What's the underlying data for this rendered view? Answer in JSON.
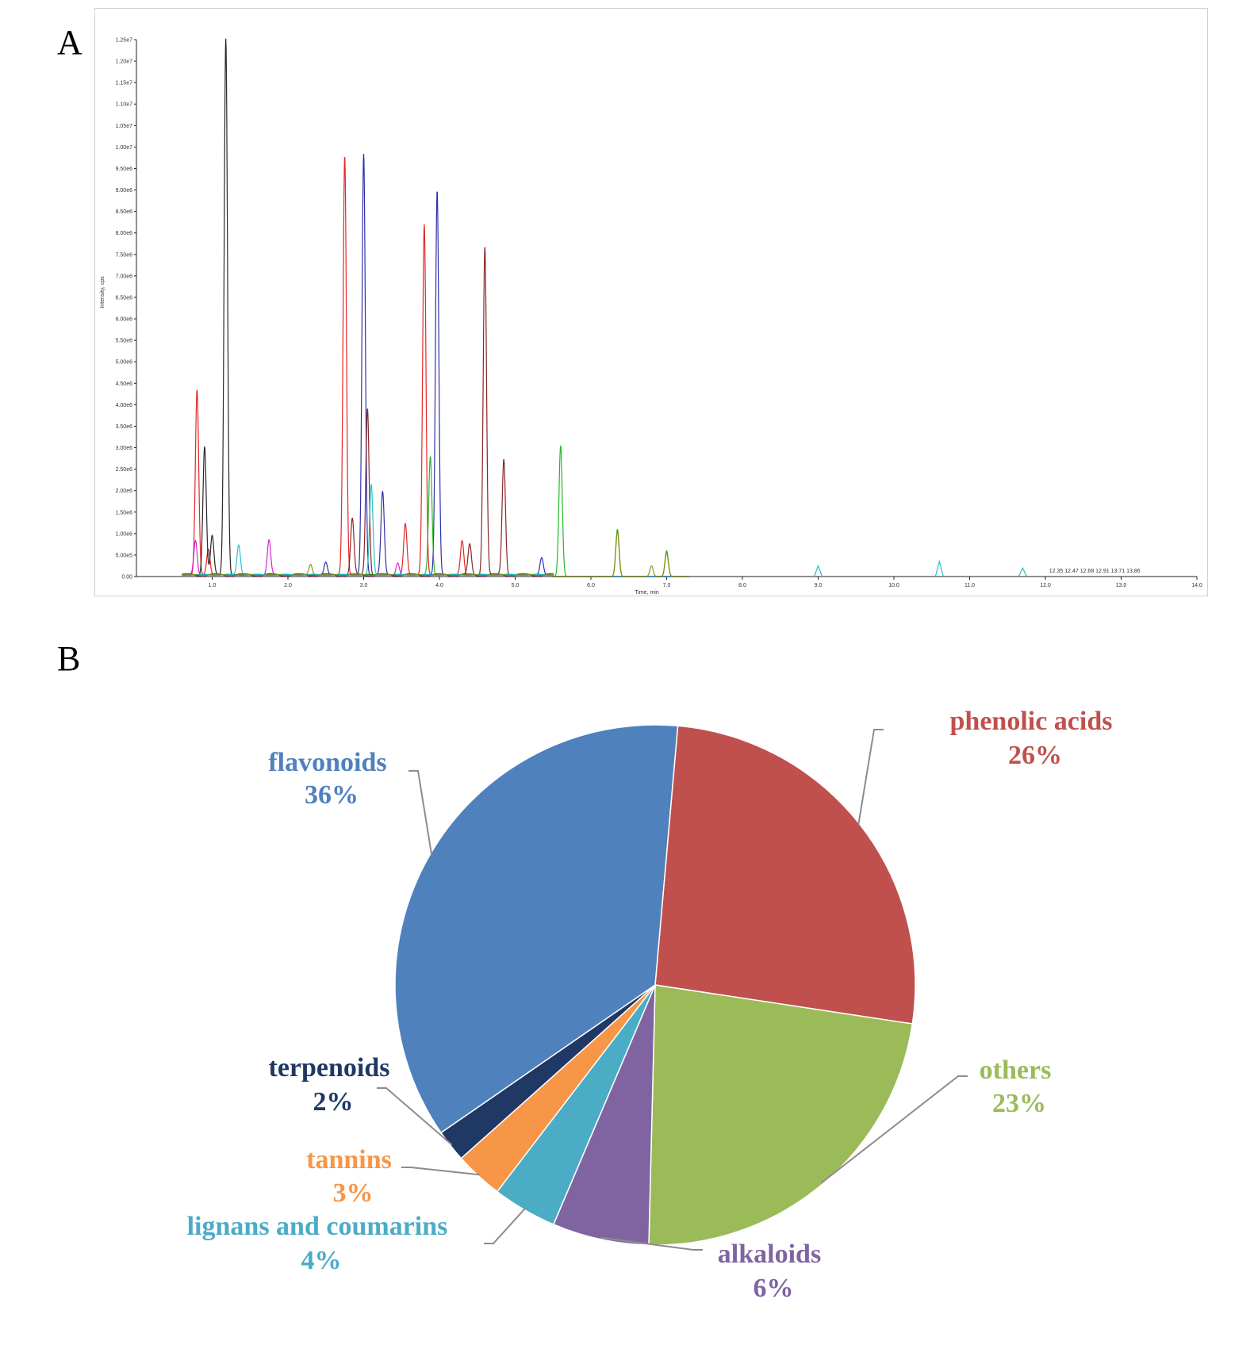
{
  "panels": {
    "a": "A",
    "b": "B"
  },
  "chromatogram": {
    "title": "",
    "ylabel": "Intensity, cps",
    "xlabel": "Time, min",
    "y_tick_labels": [
      "0.00",
      "5.00e5",
      "1.00e6",
      "1.50e6",
      "2.00e6",
      "2.50e6",
      "3.00e6",
      "3.50e6",
      "4.00e6",
      "4.50e6",
      "5.00e6",
      "5.50e6",
      "6.00e6",
      "6.50e6",
      "7.00e6",
      "7.50e6",
      "8.00e6",
      "8.50e6",
      "9.00e6",
      "9.50e6",
      "1.00e7",
      "1.05e7",
      "1.10e7",
      "1.15e7",
      "1.20e7",
      "1.25e7"
    ],
    "x_tick_labels": [
      "1.0",
      "2.0",
      "3.0",
      "4.0",
      "5.0",
      "6.0",
      "7.0",
      "8.0",
      "9.0",
      "10.0",
      "11.0",
      "12.0",
      "13.0",
      "14.0"
    ],
    "annotations": [
      "12.35",
      "12.47",
      "12.68",
      "12.91",
      "13.71",
      "13.86"
    ]
  },
  "chart_data": [
    {
      "type": "line",
      "title": "",
      "xlabel": "Time, min",
      "ylabel": "Intensity, cps",
      "xlim": [
        0,
        14
      ],
      "ylim": [
        0,
        12500000
      ],
      "series": [
        {
          "name": "red",
          "color": "#e01010",
          "peaks": [
            [
              0.8,
              4300000
            ],
            [
              2.75,
              9750000
            ],
            [
              3.55,
              1200000
            ],
            [
              3.8,
              8150000
            ],
            [
              0.95,
              600000
            ],
            [
              4.3,
              800000
            ]
          ]
        },
        {
          "name": "black",
          "color": "#111111",
          "peaks": [
            [
              1.18,
              12500000
            ],
            [
              0.9,
              3000000
            ],
            [
              1.0,
              900000
            ]
          ]
        },
        {
          "name": "navy",
          "color": "#1a1aa0",
          "peaks": [
            [
              3.0,
              9800000
            ],
            [
              3.97,
              8950000
            ],
            [
              3.25,
              1950000
            ],
            [
              2.5,
              300000
            ],
            [
              5.35,
              400000
            ]
          ]
        },
        {
          "name": "darkred",
          "color": "#7a1010",
          "peaks": [
            [
              4.6,
              7650000
            ],
            [
              3.05,
              3900000
            ],
            [
              4.85,
              2700000
            ],
            [
              2.85,
              1300000
            ],
            [
              4.4,
              700000
            ]
          ]
        },
        {
          "name": "green",
          "color": "#10b010",
          "peaks": [
            [
              5.6,
              3050000
            ],
            [
              3.88,
              2750000
            ],
            [
              6.35,
              1100000
            ],
            [
              7.0,
              600000
            ]
          ]
        },
        {
          "name": "magenta",
          "color": "#d010d0",
          "peaks": [
            [
              1.75,
              800000
            ],
            [
              0.78,
              800000
            ],
            [
              3.45,
              300000
            ]
          ]
        },
        {
          "name": "cyan",
          "color": "#18b8c8",
          "peaks": [
            [
              1.35,
              700000
            ],
            [
              3.1,
              2100000
            ],
            [
              9.0,
              250000
            ],
            [
              10.6,
              350000
            ],
            [
              11.7,
              200000
            ]
          ]
        },
        {
          "name": "olive",
          "color": "#8a8a10",
          "peaks": [
            [
              6.35,
              1050000
            ],
            [
              7.0,
              550000
            ],
            [
              6.8,
              250000
            ],
            [
              2.3,
              250000
            ]
          ]
        }
      ]
    },
    {
      "type": "pie",
      "title": "",
      "start_angle_deg": 5,
      "categories": [
        "phenolic acids",
        "others",
        "alkaloids",
        "lignans and coumarins",
        "tannins",
        "terpenoids",
        "flavonoids"
      ],
      "values": [
        26,
        23,
        6,
        4,
        3,
        2,
        36
      ],
      "colors": [
        "#c0504d",
        "#9bbb59",
        "#8064a2",
        "#4bacc6",
        "#f79646",
        "#1f3864",
        "#4f81bd"
      ],
      "labels": [
        {
          "name": "phenolic acids",
          "pct": "26%",
          "color": "#c0504d"
        },
        {
          "name": "others",
          "pct": "23%",
          "color": "#9bbb59"
        },
        {
          "name": "alkaloids",
          "pct": "6%",
          "color": "#8064a2"
        },
        {
          "name": "lignans and coumarins",
          "pct": "4%",
          "color": "#4bacc6"
        },
        {
          "name": "tannins",
          "pct": "3%",
          "color": "#f79646"
        },
        {
          "name": "terpenoids",
          "pct": "2%",
          "color": "#1f3864"
        },
        {
          "name": "flavonoids",
          "pct": "36%",
          "color": "#4f81bd"
        }
      ]
    }
  ]
}
